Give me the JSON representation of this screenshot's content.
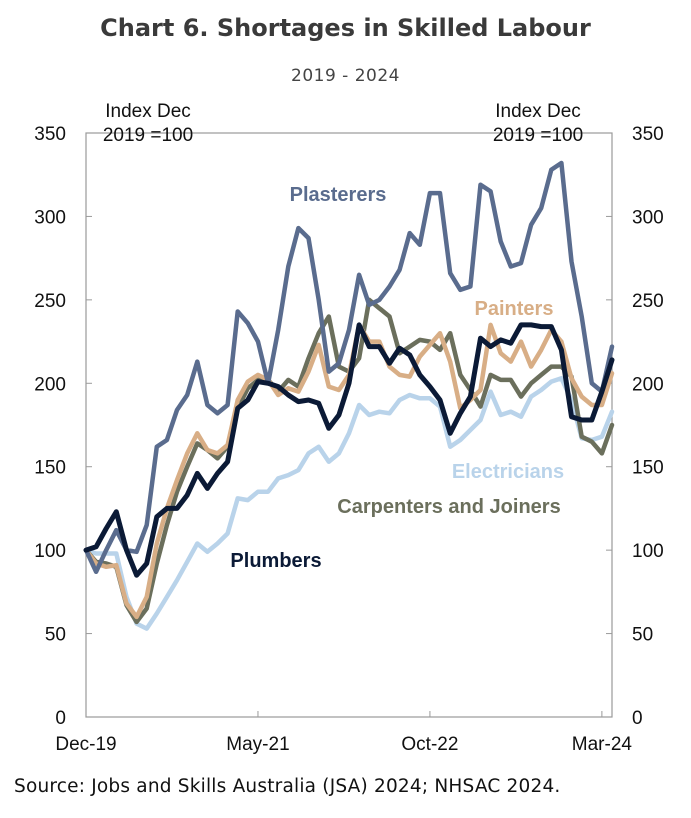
{
  "title": "Chart 6. Shortages in Skilled Labour",
  "subtitle": "2019 - 2024",
  "source": "Source:   Jobs and Skills Australia (JSA) 2024; NHSAC 2024.",
  "chart_data": {
    "type": "line",
    "title": "Chart 6. Shortages in Skilled Labour",
    "subtitle": "2019 - 2024",
    "x_start": "2019-12",
    "x_end": "2024-03",
    "x_frequency": "monthly",
    "x_ticks": [
      "Dec-19",
      "May-21",
      "Oct-22",
      "Mar-24"
    ],
    "y_left_label": [
      "Index Dec",
      "2019 =100"
    ],
    "y_right_label": [
      "Index Dec",
      "2019 =100"
    ],
    "ylim": [
      0,
      350
    ],
    "y_ticks": [
      0,
      50,
      100,
      150,
      200,
      250,
      300,
      350
    ],
    "grid": false,
    "series": [
      {
        "name": "Electricians",
        "color": "#b9d3ea",
        "values": [
          100,
          98,
          98,
          98,
          72,
          56,
          53,
          62,
          72,
          82,
          93,
          104,
          99,
          104,
          110,
          131,
          130,
          135,
          135,
          143,
          145,
          148,
          158,
          162,
          153,
          158,
          170,
          187,
          181,
          183,
          182,
          190,
          193,
          191,
          191,
          186,
          162,
          166,
          172,
          178,
          195,
          181,
          183,
          180,
          192,
          196,
          201,
          203,
          190,
          167,
          166,
          168,
          183
        ]
      },
      {
        "name": "Carpenters and Joiners",
        "color": "#6b6f5c",
        "values": [
          100,
          93,
          92,
          90,
          67,
          57,
          65,
          92,
          115,
          135,
          150,
          164,
          160,
          155,
          162,
          185,
          197,
          202,
          202,
          195,
          202,
          198,
          215,
          230,
          240,
          210,
          207,
          215,
          250,
          245,
          240,
          218,
          222,
          226,
          225,
          220,
          230,
          205,
          196,
          186,
          205,
          202,
          202,
          192,
          200,
          205,
          210,
          210,
          204,
          168,
          165,
          158,
          175
        ]
      },
      {
        "name": "Painters",
        "color": "#d8ae86",
        "values": [
          100,
          92,
          90,
          91,
          68,
          60,
          72,
          104,
          125,
          142,
          158,
          170,
          160,
          158,
          163,
          190,
          201,
          205,
          202,
          193,
          197,
          195,
          207,
          223,
          198,
          196,
          205,
          235,
          225,
          225,
          210,
          205,
          204,
          216,
          223,
          230,
          213,
          185,
          190,
          196,
          235,
          218,
          213,
          225,
          210,
          220,
          232,
          225,
          203,
          192,
          187,
          187,
          206
        ]
      },
      {
        "name": "Plasterers",
        "color": "#5a6c8e",
        "values": [
          100,
          87,
          100,
          112,
          100,
          99,
          115,
          162,
          166,
          184,
          193,
          213,
          187,
          182,
          187,
          243,
          236,
          225,
          200,
          232,
          270,
          293,
          287,
          250,
          207,
          212,
          232,
          265,
          247,
          250,
          258,
          268,
          290,
          283,
          314,
          314,
          266,
          256,
          258,
          319,
          315,
          285,
          270,
          272,
          295,
          305,
          328,
          332,
          273,
          240,
          200,
          195,
          222
        ]
      },
      {
        "name": "Plumbers",
        "color": "#0b1a36",
        "values": [
          100,
          102,
          113,
          123,
          100,
          85,
          92,
          120,
          125,
          125,
          133,
          146,
          137,
          146,
          153,
          185,
          190,
          201,
          200,
          198,
          193,
          189,
          190,
          188,
          173,
          181,
          200,
          235,
          222,
          222,
          212,
          221,
          217,
          205,
          198,
          190,
          170,
          182,
          192,
          227,
          222,
          226,
          224,
          235,
          235,
          234,
          234,
          220,
          180,
          178,
          178,
          195,
          214
        ]
      }
    ],
    "annotations": [
      {
        "text": "Plasterers",
        "series": "Plasterers"
      },
      {
        "text": "Painters",
        "series": "Painters"
      },
      {
        "text": "Electricians",
        "series": "Electricians"
      },
      {
        "text": "Carpenters and Joiners",
        "series": "Carpenters and Joiners"
      },
      {
        "text": "Plumbers",
        "series": "Plumbers"
      }
    ]
  }
}
